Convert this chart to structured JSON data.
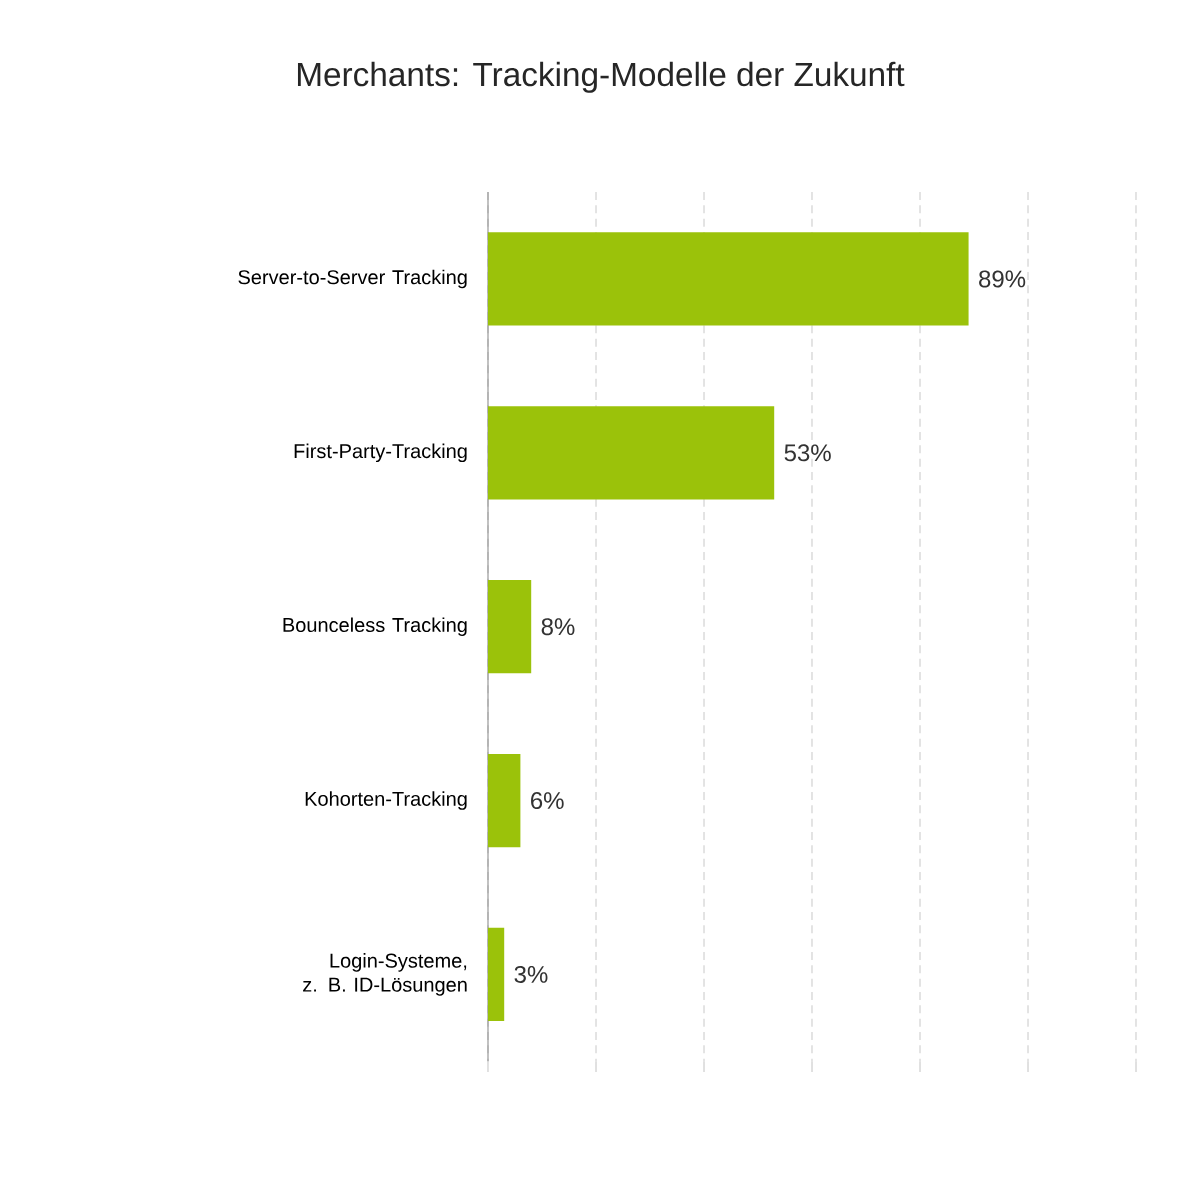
{
  "chart_data": {
    "type": "bar",
    "orientation": "horizontal",
    "title": "Merchants: Tracking-Modelle der Zukunft",
    "categories": [
      "Server-to-Server Tracking",
      "First-Party-Tracking",
      "Bounceless Tracking",
      "Kohorten-Tracking",
      "Login-Systeme, z. B. ID-Lösungen"
    ],
    "values": [
      89,
      53,
      8,
      6,
      3
    ],
    "value_labels": [
      "89%",
      "53%",
      "8%",
      "6%",
      "3%"
    ],
    "color": "#9bc20a",
    "xlim": [
      0,
      120
    ],
    "xticks": [
      {
        "value": 0,
        "label": null
      },
      {
        "value": 20,
        "label": null
      },
      {
        "value": 40,
        "label": null
      },
      {
        "value": 60,
        "label": null
      },
      {
        "value": 80,
        "label": null
      },
      {
        "value": 100,
        "label": null
      },
      {
        "value": 120,
        "label": null
      }
    ],
    "grid": "x"
  }
}
